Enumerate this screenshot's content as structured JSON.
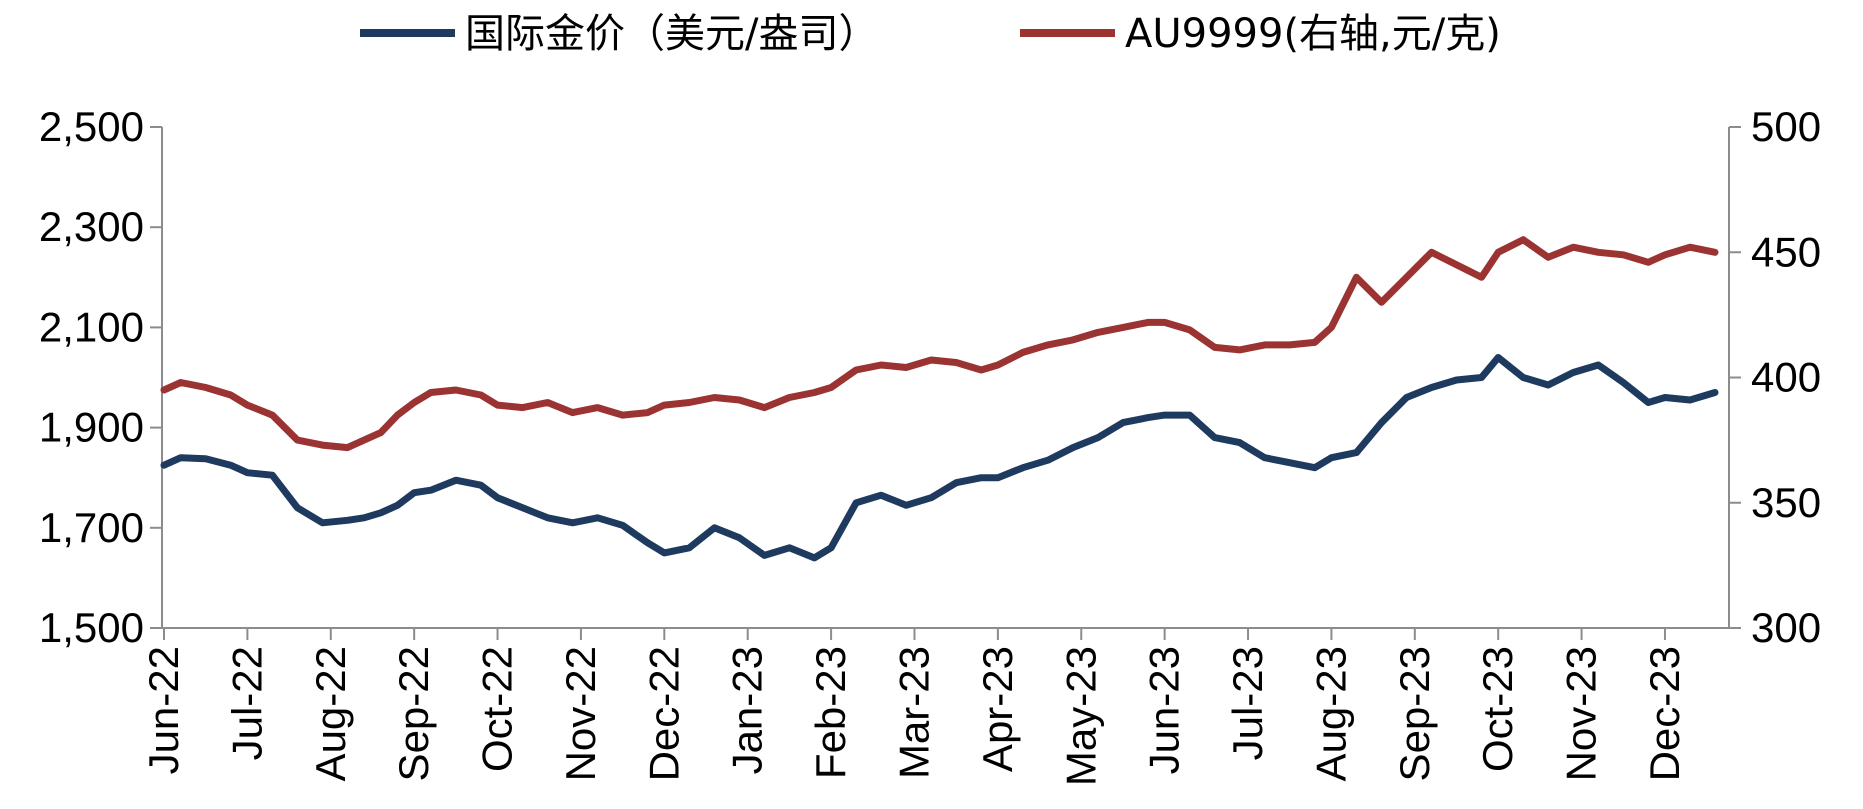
{
  "chart_data": {
    "type": "line",
    "title": "",
    "legend": {
      "placement": "top-center",
      "entries": [
        {
          "label": "国际金价（美元/盎司）",
          "color": "#1f3a5f"
        },
        {
          "label": "AU9999(右轴,元/克)",
          "color": "#9b3333"
        }
      ]
    },
    "grid": false,
    "x_axis": {
      "ticks": [
        "Jun-22",
        "Jul-22",
        "Aug-22",
        "Sep-22",
        "Oct-22",
        "Nov-22",
        "Dec-22",
        "Jan-23",
        "Feb-23",
        "Mar-23",
        "Apr-23",
        "May-23",
        "Jun-23",
        "Jul-23",
        "Aug-23",
        "Sep-23",
        "Oct-23",
        "Nov-23",
        "Dec-23"
      ],
      "range": [
        "Jun-22",
        "Dec-23"
      ]
    },
    "y_left": {
      "ticks": [
        "1,500",
        "1,700",
        "1,900",
        "2,100",
        "2,300",
        "2,500"
      ],
      "range": [
        1500,
        2500
      ]
    },
    "y_right": {
      "ticks": [
        "300",
        "350",
        "400",
        "450",
        "500"
      ],
      "range": [
        300,
        500
      ]
    },
    "x": [
      0,
      0.2,
      0.5,
      0.8,
      1.0,
      1.3,
      1.6,
      1.9,
      2.2,
      2.4,
      2.6,
      2.8,
      3.0,
      3.2,
      3.5,
      3.8,
      4.0,
      4.3,
      4.6,
      4.9,
      5.2,
      5.5,
      5.8,
      6.0,
      6.3,
      6.6,
      6.9,
      7.2,
      7.5,
      7.8,
      8.0,
      8.3,
      8.6,
      8.9,
      9.2,
      9.5,
      9.8,
      10.0,
      10.3,
      10.6,
      10.9,
      11.2,
      11.5,
      11.8,
      12.0,
      12.3,
      12.6,
      12.9,
      13.2,
      13.5,
      13.8,
      14.0,
      14.3,
      14.6,
      14.9,
      15.2,
      15.5,
      15.8,
      16.0,
      16.3,
      16.6,
      16.9,
      17.2,
      17.5,
      17.8,
      18.0,
      18.3,
      18.6
    ],
    "series": [
      {
        "name": "国际金价（美元/盎司）",
        "axis": "left",
        "color": "#1f3a5f",
        "values": [
          1825,
          1840,
          1838,
          1825,
          1810,
          1805,
          1740,
          1710,
          1715,
          1720,
          1730,
          1745,
          1770,
          1775,
          1795,
          1785,
          1760,
          1740,
          1720,
          1710,
          1720,
          1705,
          1670,
          1650,
          1660,
          1700,
          1680,
          1645,
          1660,
          1640,
          1660,
          1750,
          1765,
          1745,
          1760,
          1790,
          1800,
          1800,
          1820,
          1835,
          1860,
          1880,
          1910,
          1920,
          1925,
          1925,
          1880,
          1870,
          1840,
          1830,
          1820,
          1840,
          1850,
          1910,
          1960,
          1980,
          1995,
          2000,
          2040,
          2000,
          1985,
          2010,
          2025,
          1990,
          1950,
          1960,
          1955,
          1970
        ]
      },
      {
        "name": "AU9999(右轴,元/克)",
        "axis": "right",
        "color": "#9b3333",
        "values": [
          395,
          398,
          396,
          393,
          389,
          385,
          375,
          373,
          372,
          375,
          378,
          385,
          390,
          394,
          395,
          393,
          389,
          388,
          390,
          386,
          388,
          385,
          386,
          389,
          390,
          392,
          391,
          388,
          392,
          394,
          396,
          403,
          405,
          404,
          407,
          406,
          403,
          405,
          410,
          413,
          415,
          418,
          420,
          422,
          422,
          419,
          412,
          411,
          413,
          413,
          414,
          420,
          440,
          430,
          440,
          450,
          445,
          440,
          450,
          455,
          448,
          452,
          450,
          449,
          446,
          449,
          452,
          450
        ]
      }
    ]
  }
}
